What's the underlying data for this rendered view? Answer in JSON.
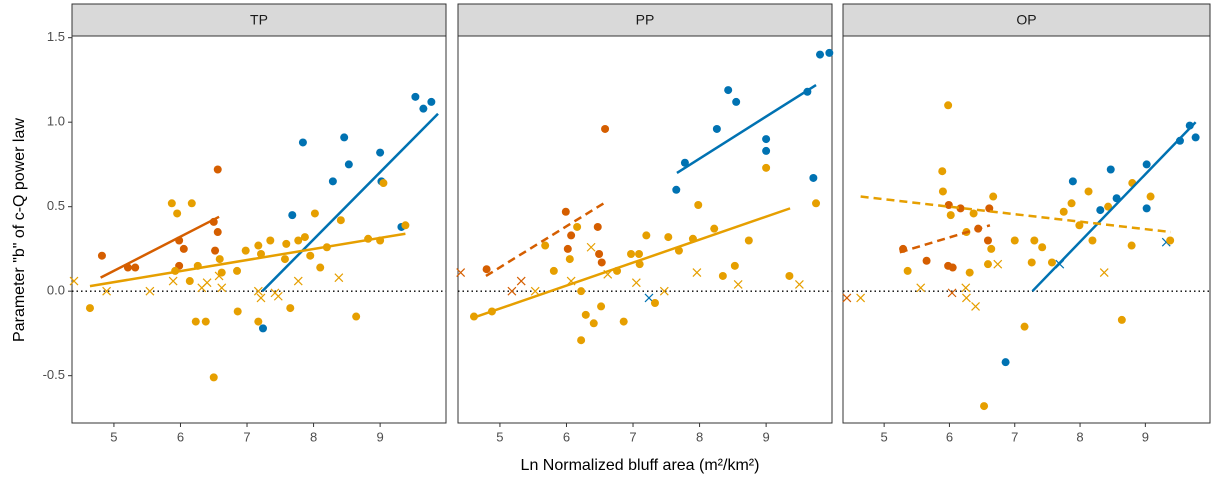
{
  "xlabel": "Ln Normalized bluff area (m²/km²)",
  "ylabel": "Parameter \"b\" of c-Q power law",
  "chart_data": [
    {
      "type": "scatter",
      "title": "TP",
      "xlim": [
        4.37,
        9.99
      ],
      "ylim": [
        -0.78,
        1.51
      ],
      "xticks": [
        5,
        6,
        7,
        8,
        9
      ],
      "yticks": [
        -0.5,
        {
          "value": 0,
          "label": "0.0"
        },
        0.5,
        {
          "value": 1,
          "label": "1.0"
        },
        1.5
      ],
      "hline": 0,
      "series": [
        {
          "color": "#0072b2",
          "marker": "circle",
          "x": [
            9.77,
            9.53,
            9.65,
            9.0,
            9.02,
            9.32,
            8.46,
            8.53,
            8.29,
            7.84,
            7.68,
            7.24
          ],
          "values": [
            1.12,
            1.15,
            1.08,
            0.82,
            0.65,
            0.38,
            0.91,
            0.75,
            0.65,
            0.88,
            0.45,
            -0.22
          ]
        },
        {
          "color": "#d55e00",
          "marker": "circle",
          "x": [
            4.82,
            5.21,
            5.32,
            5.98,
            6.05,
            5.98,
            6.52,
            6.56,
            6.56,
            6.5
          ],
          "values": [
            0.21,
            0.14,
            0.14,
            0.15,
            0.25,
            0.3,
            0.24,
            0.72,
            0.35,
            0.41
          ]
        },
        {
          "color": "#e69f00",
          "marker": "circle",
          "x": [
            4.64,
            5.87,
            5.95,
            6.17,
            5.92,
            6.14,
            6.26,
            6.23,
            6.38,
            6.5,
            6.59,
            6.62,
            6.86,
            6.85,
            6.98,
            7.17,
            7.21,
            7.17,
            7.35,
            7.59,
            7.57,
            7.65,
            7.77,
            7.87,
            7.95,
            8.02,
            8.1,
            8.2,
            8.41,
            8.64,
            8.82,
            9.0,
            9.05,
            9.38
          ],
          "values": [
            -0.1,
            0.52,
            0.46,
            0.52,
            0.12,
            0.06,
            0.15,
            -0.18,
            -0.18,
            -0.51,
            0.19,
            0.11,
            -0.12,
            0.12,
            0.24,
            0.27,
            0.22,
            -0.18,
            0.3,
            0.28,
            0.19,
            -0.1,
            0.3,
            0.32,
            0.21,
            0.46,
            0.14,
            0.26,
            0.42,
            -0.15,
            0.31,
            0.3,
            0.64,
            0.39
          ]
        },
        {
          "color": "#e69f00",
          "marker": "cross",
          "x": [
            4.4,
            4.89,
            5.54,
            5.89,
            6.32,
            6.4,
            6.58,
            6.62,
            7.17,
            7.21,
            7.42,
            7.47,
            7.77,
            8.38
          ],
          "values": [
            0.06,
            0.0,
            0.0,
            0.06,
            0.02,
            0.05,
            0.09,
            0.02,
            0.0,
            -0.04,
            -0.01,
            -0.03,
            0.06,
            0.08
          ]
        }
      ],
      "lines": [
        {
          "color": "#0072b2",
          "dash": false,
          "x": [
            7.23,
            9.87
          ],
          "values": [
            0.0,
            1.05
          ]
        },
        {
          "color": "#d55e00",
          "dash": false,
          "x": [
            4.8,
            6.58
          ],
          "values": [
            0.08,
            0.44
          ]
        },
        {
          "color": "#e69f00",
          "dash": false,
          "x": [
            4.64,
            9.38
          ],
          "values": [
            0.03,
            0.34
          ]
        }
      ]
    },
    {
      "type": "scatter",
      "title": "PP",
      "xlim": [
        4.37,
        9.99
      ],
      "ylim": [
        -0.78,
        1.51
      ],
      "xticks": [
        5,
        6,
        7,
        8,
        9
      ],
      "hline": 0,
      "series": [
        {
          "color": "#0072b2",
          "marker": "circle",
          "x": [
            9.81,
            9.95,
            9.62,
            8.43,
            8.55,
            8.26,
            9.0,
            9.0,
            9.71,
            7.78,
            7.65
          ],
          "values": [
            1.4,
            1.41,
            1.18,
            1.19,
            1.12,
            0.96,
            0.83,
            0.9,
            0.67,
            0.76,
            0.6
          ]
        },
        {
          "color": "#0072b2",
          "marker": "cross",
          "x": [
            7.24
          ],
          "values": [
            -0.04
          ]
        },
        {
          "color": "#d55e00",
          "marker": "circle",
          "x": [
            4.8,
            5.99,
            6.07,
            6.02,
            6.49,
            6.58,
            6.47,
            6.53
          ],
          "values": [
            0.13,
            0.47,
            0.33,
            0.25,
            0.22,
            0.96,
            0.38,
            0.17
          ]
        },
        {
          "color": "#d55e00",
          "marker": "cross",
          "x": [
            4.41,
            5.18,
            5.32
          ],
          "values": [
            0.11,
            0.0,
            0.06
          ]
        },
        {
          "color": "#e69f00",
          "marker": "circle",
          "x": [
            4.61,
            4.88,
            5.81,
            6.05,
            6.16,
            6.22,
            6.22,
            6.29,
            6.41,
            6.52,
            6.76,
            6.86,
            6.97,
            7.09,
            7.1,
            7.2,
            7.33,
            7.53,
            7.69,
            7.9,
            7.98,
            8.22,
            8.35,
            8.53,
            8.74,
            9.0,
            9.35,
            9.75,
            5.68
          ],
          "values": [
            -0.15,
            -0.12,
            0.12,
            0.19,
            0.38,
            0.0,
            -0.29,
            -0.14,
            -0.19,
            -0.09,
            0.12,
            -0.18,
            0.22,
            0.22,
            0.16,
            0.33,
            -0.07,
            0.32,
            0.24,
            0.31,
            0.51,
            0.37,
            0.09,
            0.15,
            0.3,
            0.73,
            0.09,
            0.52,
            0.27
          ]
        },
        {
          "color": "#e69f00",
          "marker": "cross",
          "x": [
            5.53,
            6.07,
            6.37,
            6.62,
            7.05,
            7.47,
            7.96,
            8.58,
            9.5
          ],
          "values": [
            0.0,
            0.06,
            0.26,
            0.1,
            0.05,
            0.0,
            0.11,
            0.04,
            0.04
          ]
        }
      ],
      "lines": [
        {
          "color": "#0072b2",
          "dash": false,
          "x": [
            7.66,
            9.75
          ],
          "values": [
            0.7,
            1.22
          ]
        },
        {
          "color": "#d55e00",
          "dash": true,
          "x": [
            4.79,
            6.56
          ],
          "values": [
            0.09,
            0.52
          ]
        },
        {
          "color": "#e69f00",
          "dash": false,
          "x": [
            4.58,
            9.36
          ],
          "values": [
            -0.16,
            0.49
          ]
        }
      ]
    },
    {
      "type": "scatter",
      "title": "OP",
      "xlim": [
        4.37,
        9.99
      ],
      "ylim": [
        -0.78,
        1.51
      ],
      "xticks": [
        5,
        6,
        7,
        8,
        9
      ],
      "hline": 0,
      "series": [
        {
          "color": "#0072b2",
          "marker": "circle",
          "x": [
            6.86,
            7.89,
            8.47,
            8.31,
            8.56,
            9.02,
            9.02,
            9.53,
            9.68,
            9.77
          ],
          "values": [
            -0.42,
            0.65,
            0.72,
            0.48,
            0.55,
            0.75,
            0.49,
            0.89,
            0.98,
            0.91
          ]
        },
        {
          "color": "#0072b2",
          "marker": "cross",
          "x": [
            7.69,
            9.32
          ],
          "values": [
            0.16,
            0.29
          ]
        },
        {
          "color": "#d55e00",
          "marker": "circle",
          "x": [
            5.29,
            5.65,
            5.98,
            6.05,
            5.99,
            6.17,
            6.44,
            6.59,
            6.61
          ],
          "values": [
            0.25,
            0.18,
            0.15,
            0.14,
            0.51,
            0.49,
            0.37,
            0.3,
            0.49
          ]
        },
        {
          "color": "#d55e00",
          "marker": "cross",
          "x": [
            4.43,
            6.04
          ],
          "values": [
            -0.04,
            -0.01
          ]
        },
        {
          "color": "#e69f00",
          "marker": "circle",
          "x": [
            5.36,
            5.89,
            5.98,
            5.9,
            6.02,
            6.26,
            6.37,
            6.31,
            6.59,
            6.64,
            6.53,
            6.67,
            7.0,
            7.15,
            7.26,
            7.3,
            7.42,
            7.57,
            7.75,
            7.87,
            7.99,
            8.13,
            8.19,
            8.43,
            8.64,
            8.79,
            8.8,
            9.08,
            9.38
          ],
          "values": [
            0.12,
            0.71,
            1.1,
            0.59,
            0.45,
            0.35,
            0.46,
            0.11,
            0.16,
            0.25,
            -0.68,
            0.56,
            0.3,
            -0.21,
            0.17,
            0.3,
            0.26,
            0.17,
            0.47,
            0.52,
            0.39,
            0.59,
            0.3,
            0.5,
            -0.17,
            0.27,
            0.64,
            0.56,
            0.3
          ]
        },
        {
          "color": "#e69f00",
          "marker": "cross",
          "x": [
            4.64,
            5.56,
            6.25,
            6.26,
            6.4,
            6.74,
            8.37
          ],
          "values": [
            -0.04,
            0.02,
            0.02,
            -0.04,
            -0.09,
            0.16,
            0.11
          ]
        }
      ],
      "lines": [
        {
          "color": "#0072b2",
          "dash": false,
          "x": [
            7.27,
            9.77
          ],
          "values": [
            0.0,
            1.0
          ]
        },
        {
          "color": "#d55e00",
          "dash": true,
          "x": [
            5.24,
            6.62
          ],
          "values": [
            0.23,
            0.39
          ]
        },
        {
          "color": "#e69f00",
          "dash": true,
          "x": [
            4.64,
            9.39
          ],
          "values": [
            0.56,
            0.35
          ]
        }
      ]
    }
  ]
}
